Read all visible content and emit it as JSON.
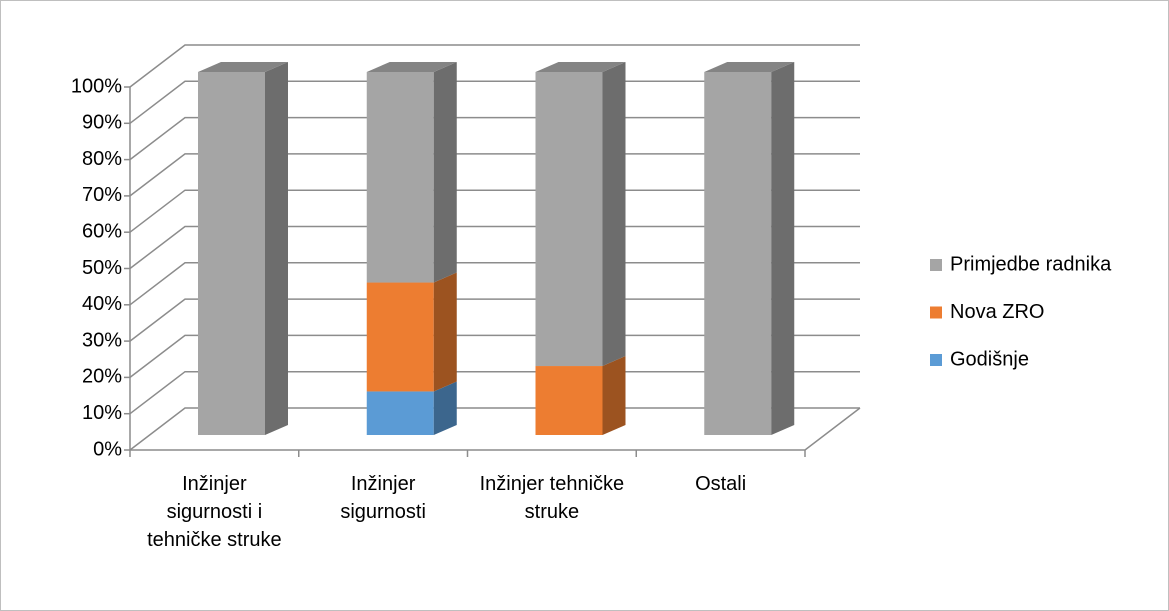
{
  "chart_data": {
    "type": "bar3d_stacked",
    "categories": [
      "Inžinjer sigurnosti i tehničke struke",
      "Inžinjer sigurnosti",
      "Inžinjer tehničke struke",
      "Ostali"
    ],
    "series": [
      {
        "name": "Godišnje",
        "color": "#5b9bd5",
        "values": [
          0,
          12,
          0,
          0
        ]
      },
      {
        "name": "Nova ZRO",
        "color": "#ed7d31",
        "values": [
          0,
          30,
          19,
          0
        ]
      },
      {
        "name": "Primjedbe radnika",
        "color": "#a5a5a5",
        "values": [
          100,
          58,
          81,
          100
        ]
      }
    ],
    "ylim": [
      0,
      100
    ],
    "yticks": [
      {
        "value": 0,
        "label": "0%"
      },
      {
        "value": 10,
        "label": "10%"
      },
      {
        "value": 20,
        "label": "20%"
      },
      {
        "value": 30,
        "label": "30%"
      },
      {
        "value": 40,
        "label": "40%"
      },
      {
        "value": 50,
        "label": "50%"
      },
      {
        "value": 60,
        "label": "60%"
      },
      {
        "value": 70,
        "label": "70%"
      },
      {
        "value": 80,
        "label": "80%"
      },
      {
        "value": 90,
        "label": "90%"
      },
      {
        "value": 100,
        "label": "100%"
      }
    ],
    "grid": true,
    "legend": "right"
  }
}
